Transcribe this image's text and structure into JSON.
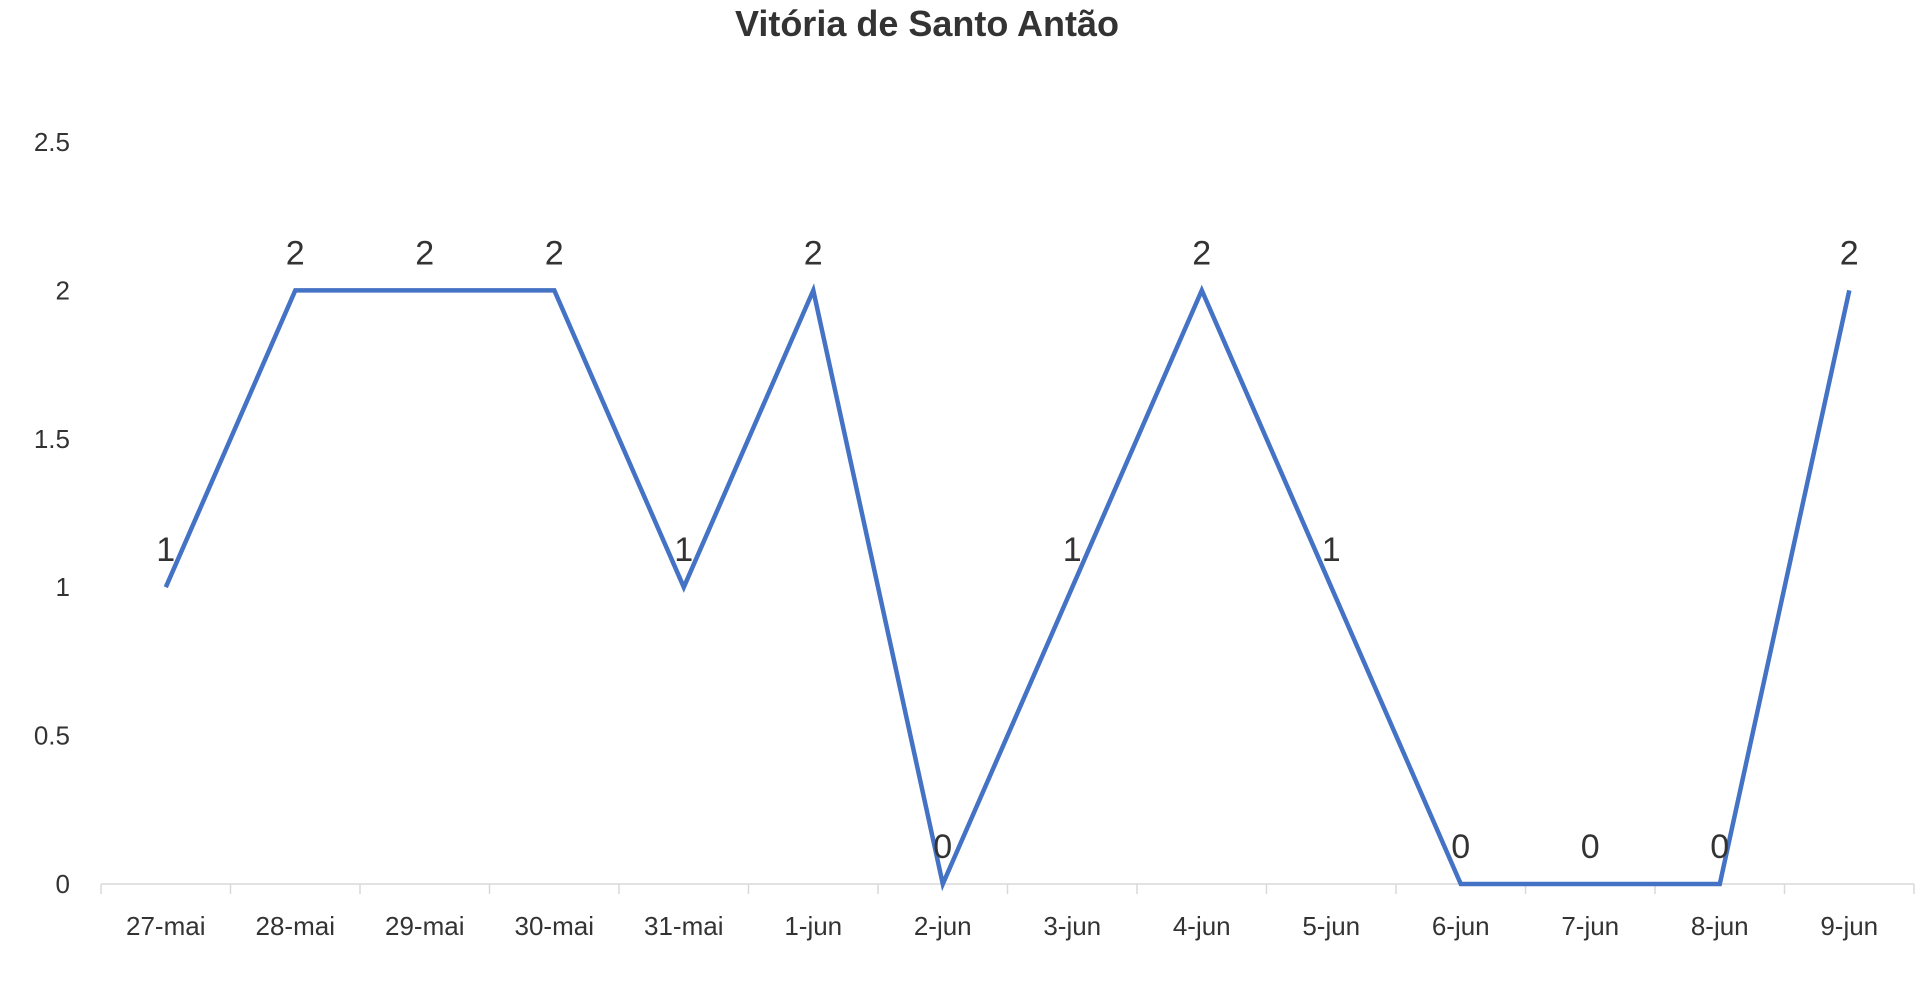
{
  "chart_data": {
    "type": "line",
    "title": "Vitória de Santo Antão",
    "xlabel": "",
    "ylabel": "",
    "categories": [
      "27-mai",
      "28-mai",
      "29-mai",
      "30-mai",
      "31-mai",
      "1-jun",
      "2-jun",
      "3-jun",
      "4-jun",
      "5-jun",
      "6-jun",
      "7-jun",
      "8-jun",
      "9-jun"
    ],
    "series": [
      {
        "values": [
          1,
          2,
          2,
          2,
          1,
          2,
          0,
          1,
          2,
          1,
          0,
          0,
          0,
          2
        ],
        "color": "#4472C4"
      }
    ],
    "ylim": [
      0,
      2.5
    ],
    "yticks": [
      0,
      0.5,
      1,
      1.5,
      2,
      2.5
    ],
    "ytick_labels": [
      "0",
      "0.5",
      "1",
      "1.5",
      "2",
      "2.5"
    ],
    "grid": false,
    "data_labels": true,
    "legend": "none"
  }
}
